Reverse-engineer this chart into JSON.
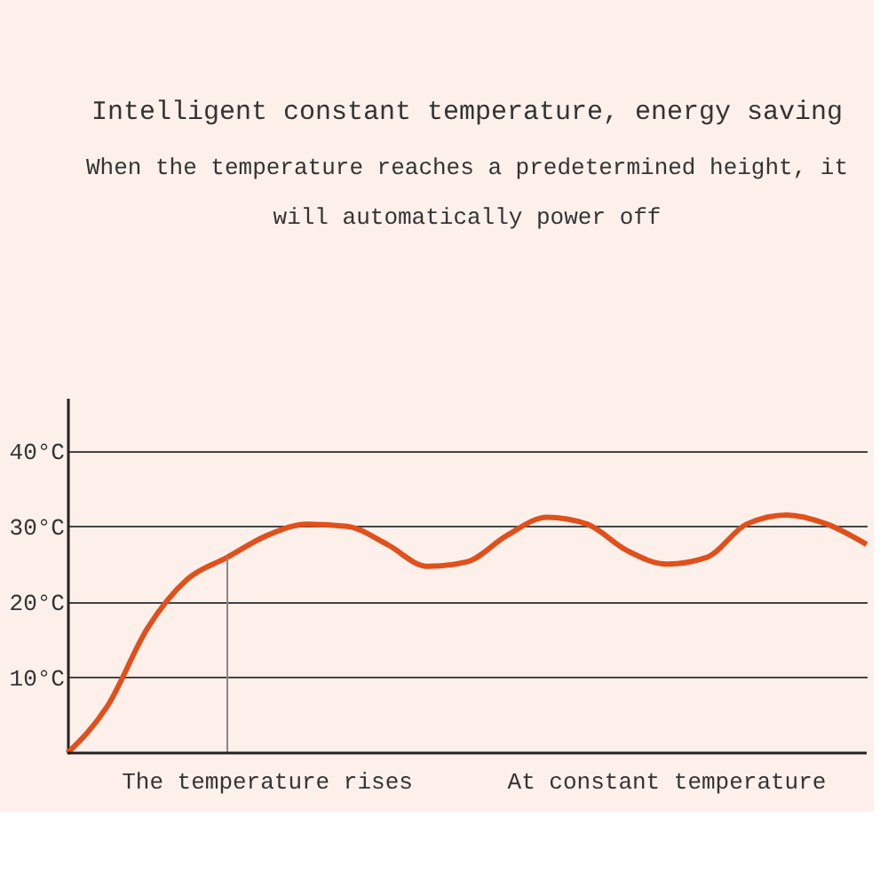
{
  "chart_data": {
    "type": "line",
    "title": "Intelligent constant temperature, energy saving",
    "subtitle": "When the temperature reaches a predetermined height, it will automatically power off",
    "categories": [
      null,
      null,
      null,
      null,
      null,
      null,
      null,
      null,
      null,
      null,
      null,
      null,
      null,
      null,
      null,
      null,
      null,
      null,
      null,
      null,
      null
    ],
    "series": [
      {
        "color": "#e0501c",
        "values": [
          0,
          6.2,
          16.5,
          23,
          25.9,
          28.8,
          30.3,
          30,
          27.6,
          24.7,
          25.3,
          28.8,
          31.2,
          30.3,
          26.8,
          25,
          25.9,
          30.3,
          31.5,
          30.3,
          27.6
        ]
      }
    ],
    "annotations": [
      "The temperature rises",
      "At constant temperature"
    ],
    "ylim": [
      0,
      47
    ],
    "yticks": [
      {
        "value": 10,
        "label": "10°C"
      },
      {
        "value": 20,
        "label": "20°C"
      },
      {
        "value": 30,
        "label": "30°C"
      },
      {
        "value": 40,
        "label": "40°C"
      }
    ],
    "grid": "y",
    "marker": "none",
    "line_style": "solid"
  }
}
